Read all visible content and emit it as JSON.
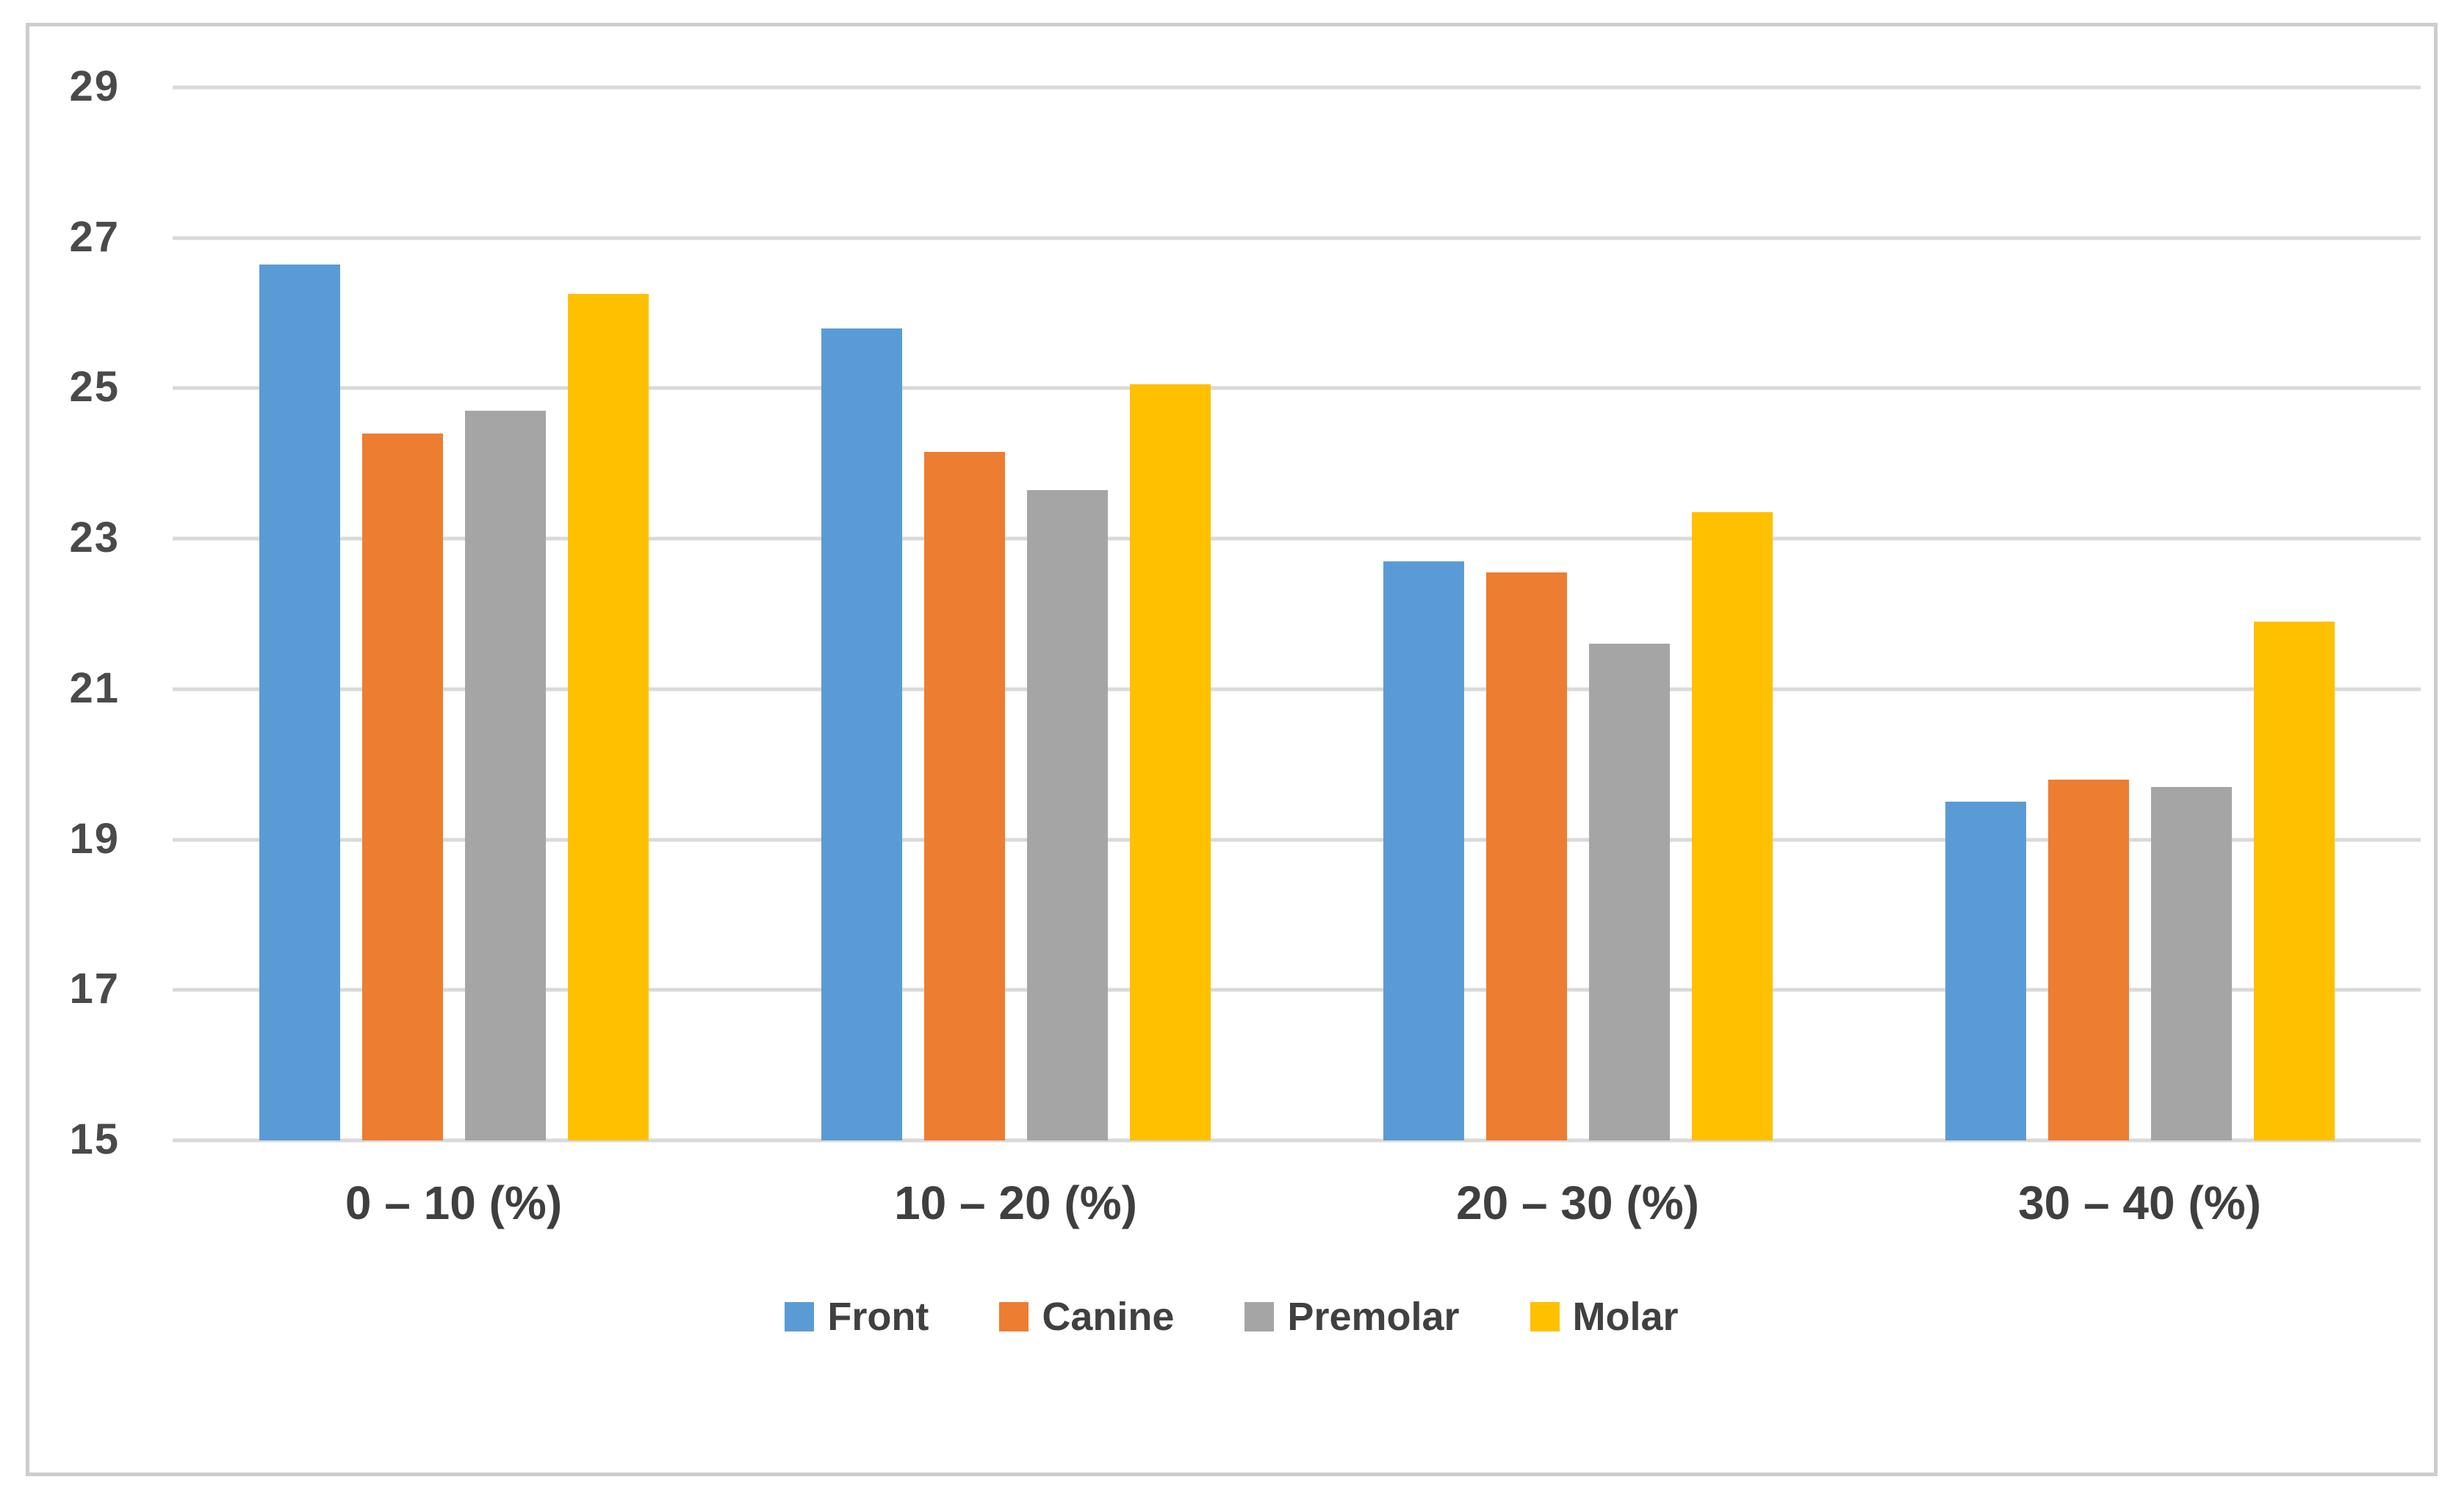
{
  "figure": {
    "background": "#ffffff",
    "frame_border_color": "#cdcdcd"
  },
  "style": {
    "gridline_color": "#d9d9d9",
    "tick_label_color": "#4a4a4a",
    "category_label_color": "#3f3f3f",
    "legend_label_color": "#404040"
  },
  "chart_data": {
    "type": "bar",
    "title": "",
    "xlabel": "",
    "ylabel": "",
    "categories": [
      "0 – 10 (%)",
      "10 – 20 (%)",
      "20 – 30 (%)",
      "30 – 40 (%)"
    ],
    "series": [
      {
        "name": "Front",
        "color": "#5B9BD5",
        "values": [
          26.65,
          25.8,
          22.7,
          19.5
        ]
      },
      {
        "name": "Canine",
        "color": "#ED7D31",
        "values": [
          24.4,
          24.15,
          22.55,
          19.8
        ]
      },
      {
        "name": "Premolar",
        "color": "#A5A5A5",
        "values": [
          24.7,
          23.65,
          21.6,
          19.7
        ]
      },
      {
        "name": "Molar",
        "color": "#FFC000",
        "values": [
          26.25,
          25.05,
          23.35,
          21.9
        ]
      }
    ],
    "ylim": [
      15,
      29
    ],
    "ytick_step": 2,
    "yticks": [
      29,
      27,
      25,
      23,
      21,
      19,
      17,
      15
    ],
    "grid": true,
    "legend_position": "bottom"
  }
}
